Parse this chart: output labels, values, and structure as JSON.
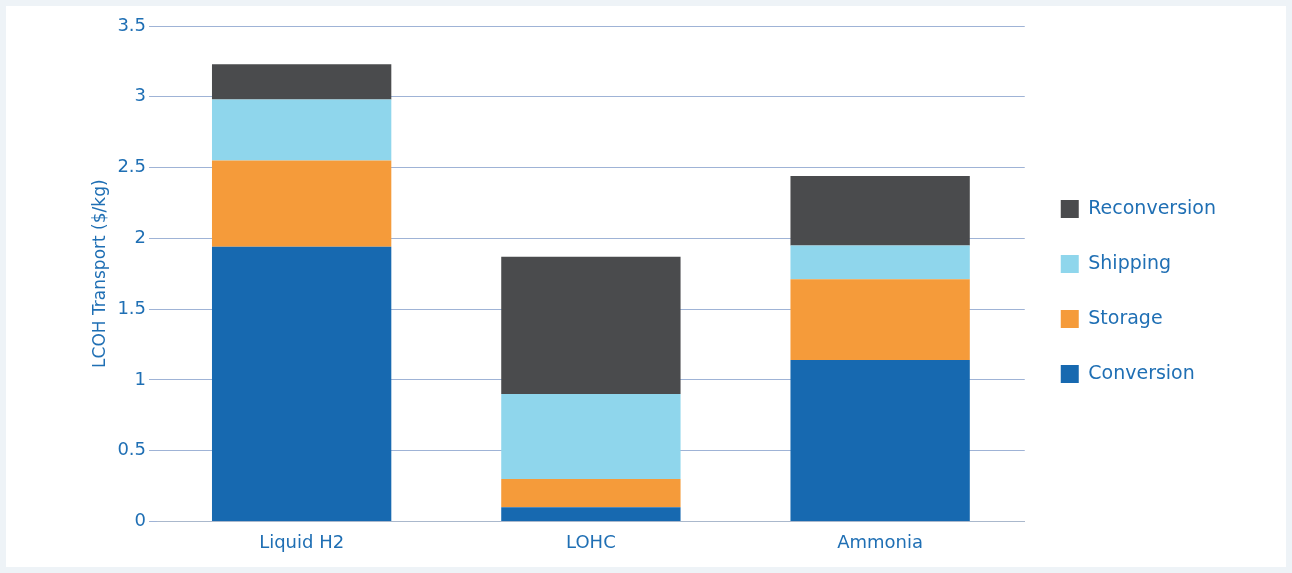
{
  "chart_data": {
    "type": "bar",
    "ylabel": "LCOH Transport ($/kg)",
    "categories": [
      "Liquid H2",
      "LOHC",
      "Ammonia"
    ],
    "series": [
      {
        "name": "Conversion",
        "color": "#1769b0",
        "values": [
          1.94,
          0.1,
          1.14
        ]
      },
      {
        "name": "Storage",
        "color": "#f59b3a",
        "values": [
          0.61,
          0.2,
          0.57
        ]
      },
      {
        "name": "Shipping",
        "color": "#8fd6ec",
        "values": [
          0.43,
          0.6,
          0.24
        ]
      },
      {
        "name": "Reconversion",
        "color": "#4a4b4d",
        "values": [
          0.25,
          0.97,
          0.49
        ]
      }
    ],
    "stacked": true,
    "ylim": [
      0,
      3.5
    ],
    "yticks": [
      0,
      0.5,
      1,
      1.5,
      2,
      2.5,
      3,
      3.5
    ],
    "grid": "y",
    "legend": "right"
  }
}
